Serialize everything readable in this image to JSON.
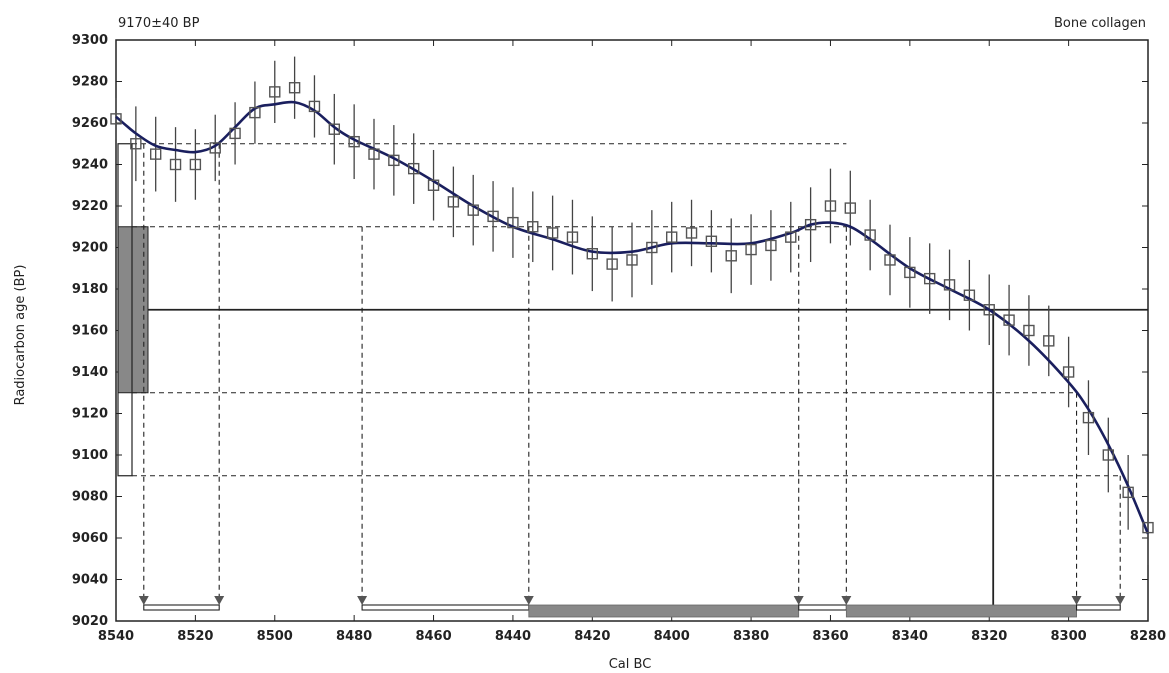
{
  "header": {
    "left_label": "9170±40 BP",
    "right_label": "Bone collagen"
  },
  "chart_data": {
    "type": "scatter",
    "xlabel": "Cal BC",
    "ylabel": "Radiocarbon age (BP)",
    "xlim": [
      8540,
      8280
    ],
    "ylim": [
      9020,
      9300
    ],
    "x_reversed": true,
    "x_ticks": [
      "8540",
      "8520",
      "8500",
      "8480",
      "8460",
      "8440",
      "8420",
      "8400",
      "8380",
      "8360",
      "8340",
      "8320",
      "8300",
      "8280"
    ],
    "y_ticks": [
      "9020",
      "9040",
      "9060",
      "9080",
      "9100",
      "9120",
      "9140",
      "9160",
      "9180",
      "9200",
      "9220",
      "9240",
      "9260",
      "9280",
      "9300"
    ],
    "measured_age": 9170,
    "measured_error": 40,
    "measurements": {
      "x": [
        8540,
        8535,
        8530,
        8525,
        8520,
        8515,
        8510,
        8505,
        8500,
        8495,
        8490,
        8485,
        8480,
        8475,
        8470,
        8465,
        8460,
        8455,
        8450,
        8445,
        8440,
        8435,
        8430,
        8425,
        8420,
        8415,
        8410,
        8405,
        8400,
        8395,
        8390,
        8385,
        8380,
        8375,
        8370,
        8365,
        8360,
        8355,
        8350,
        8345,
        8340,
        8335,
        8330,
        8325,
        8320,
        8315,
        8310,
        8305,
        8300,
        8295,
        8290,
        8285,
        8280
      ],
      "y": [
        9262,
        9250,
        9245,
        9240,
        9240,
        9248,
        9255,
        9265,
        9275,
        9277,
        9268,
        9257,
        9251,
        9245,
        9242,
        9238,
        9230,
        9222,
        9218,
        9215,
        9212,
        9210,
        9207,
        9205,
        9197,
        9192,
        9194,
        9200,
        9205,
        9207,
        9203,
        9196,
        9199,
        9201,
        9205,
        9211,
        9220,
        9219,
        9206,
        9194,
        9188,
        9185,
        9182,
        9177,
        9170,
        9165,
        9160,
        9155,
        9140,
        9118,
        9100,
        9082,
        9065
      ],
      "error": [
        10,
        18,
        18,
        18,
        17,
        16,
        15,
        15,
        15,
        15,
        15,
        17,
        18,
        17,
        17,
        17,
        17,
        17,
        17,
        17,
        17,
        17,
        18,
        18,
        18,
        18,
        18,
        18,
        17,
        16,
        15,
        18,
        17,
        17,
        17,
        18,
        18,
        18,
        17,
        17,
        17,
        17,
        17,
        17,
        17,
        17,
        17,
        17,
        17,
        18,
        18,
        18,
        18
      ]
    },
    "calibration_curve": {
      "x": [
        8540,
        8535,
        8530,
        8525,
        8520,
        8515,
        8510,
        8505,
        8500,
        8495,
        8490,
        8485,
        8480,
        8470,
        8460,
        8450,
        8440,
        8430,
        8420,
        8410,
        8400,
        8390,
        8380,
        8370,
        8365,
        8360,
        8355,
        8350,
        8340,
        8330,
        8320,
        8310,
        8300,
        8295,
        8290,
        8285,
        8280
      ],
      "y": [
        9263,
        9255,
        9249,
        9247,
        9246,
        9249,
        9258,
        9267,
        9269,
        9270,
        9266,
        9258,
        9252,
        9243,
        9232,
        9220,
        9210,
        9204,
        9198,
        9198,
        9202,
        9202,
        9202,
        9207,
        9211,
        9212,
        9210,
        9204,
        9190,
        9180,
        9170,
        9155,
        9135,
        9122,
        9105,
        9085,
        9062
      ]
    },
    "reference_levels": [
      9250,
      9210,
      9170,
      9130,
      9090
    ],
    "calibrated_ranges": [
      {
        "from": 8533,
        "to": 8514,
        "shaded": false
      },
      {
        "from": 8478,
        "to": 8436,
        "shaded": false
      },
      {
        "from": 8436,
        "to": 8368,
        "shaded": true
      },
      {
        "from": 8368,
        "to": 8356,
        "shaded": false
      },
      {
        "from": 8356,
        "to": 8298,
        "shaded": true
      },
      {
        "from": 8298,
        "to": 8287,
        "shaded": false
      }
    ],
    "projection_x": [
      8533,
      8514,
      8478,
      8436,
      8368,
      8356,
      8298,
      8287
    ],
    "intercept_x": 8319,
    "colors": {
      "curve": "#1a1f5e",
      "marker": "#555555",
      "errorbar": "#444444",
      "shade": "#888888",
      "axis": "#222222"
    }
  }
}
